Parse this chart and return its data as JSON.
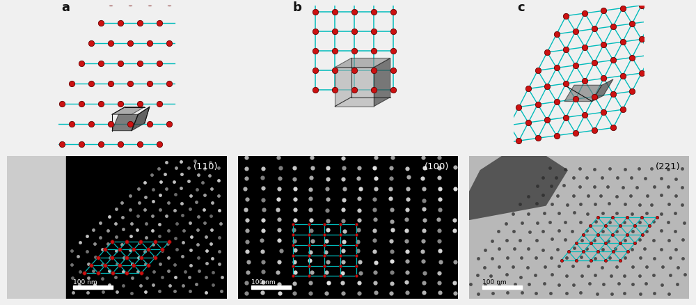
{
  "background_color": "#f0f0f0",
  "label_a": "a",
  "label_b": "b",
  "label_c": "c",
  "label_110": "(110)",
  "label_100": "(100)",
  "label_221": "(221)",
  "scale_bar_text": "100 nm",
  "atom_color": "#cc1111",
  "bond_color": "#00bbbb",
  "atom_edgecolor": "#660000",
  "label_fontsize": 13,
  "label_fontweight": "bold",
  "panel_label_color": "#111111",
  "em_label_fontsize": 10
}
